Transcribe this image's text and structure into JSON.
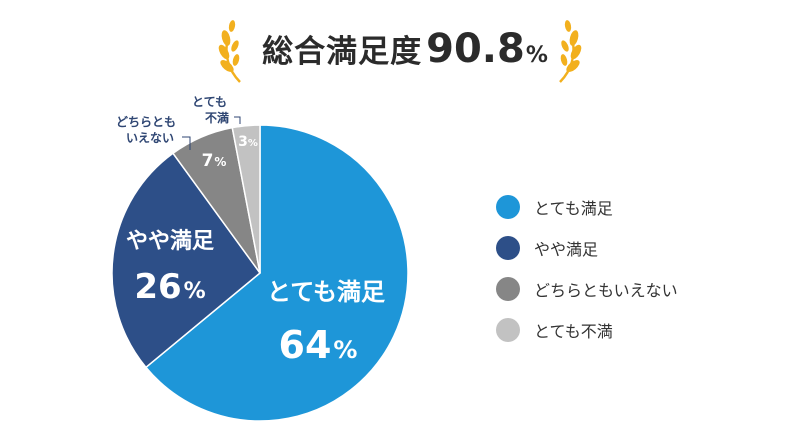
{
  "header": {
    "title": "総合満足度",
    "value": "90.8",
    "unit": "%"
  },
  "chart_data": {
    "type": "pie",
    "categories": [
      "とても満足",
      "やや満足",
      "どちらともいえない",
      "とても不満"
    ],
    "values": [
      64,
      26,
      7,
      3
    ],
    "value_labels": [
      "64%",
      "26%",
      "7%",
      "3%"
    ],
    "label_pieces": {
      "very_satisfied_pct": "64",
      "somewhat_satisfied_pct": "26",
      "neutral_pct": "7",
      "very_dissatisfied_pct": "3",
      "unit": "%",
      "neutral_line1": "どちらとも",
      "neutral_line2": "いえない",
      "dissatisfied_line1": "とても",
      "dissatisfied_line2": "不満"
    },
    "colors": [
      "#1e96d8",
      "#2d4f88",
      "#868686",
      "#c2c2c2"
    ],
    "legend_position": "right",
    "start_angle": "12 o'clock, clockwise"
  },
  "legend": {
    "items": [
      {
        "label": "とても満足",
        "color": "#1e96d8"
      },
      {
        "label": "やや満足",
        "color": "#2d4f88"
      },
      {
        "label": "どちらともいえない",
        "color": "#868686"
      },
      {
        "label": "とても不満",
        "color": "#c2c2c2"
      }
    ]
  },
  "colors": {
    "laurel": "#f2b01e",
    "title_text": "#2b2b2b",
    "callout_text": "#2f4673"
  }
}
